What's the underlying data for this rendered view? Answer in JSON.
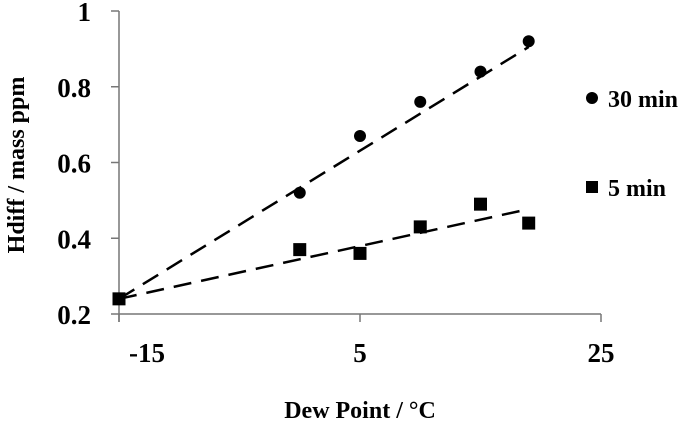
{
  "chart_data": {
    "type": "scatter",
    "title": "",
    "xlabel": "Dew Point / °C",
    "ylabel": "Hdiff / mass ppm",
    "xlim": [
      -15,
      25
    ],
    "ylim": [
      0.2,
      1.0
    ],
    "xticks": [
      -15,
      5,
      25
    ],
    "xtick_labels": [
      "-15",
      "5",
      "25"
    ],
    "yticks": [
      0.2,
      0.4,
      0.6,
      0.8,
      1.0
    ],
    "ytick_labels": [
      "0.2",
      "0.4",
      "0.6",
      "0.8",
      "1"
    ],
    "grid": false,
    "legend_position": "right",
    "series": [
      {
        "name": "30 min",
        "marker": "circle",
        "x": [
          -15,
          0,
          5,
          10,
          15,
          19
        ],
        "y": [
          0.24,
          0.52,
          0.67,
          0.76,
          0.84,
          0.92
        ],
        "trendline": {
          "style": "dashed",
          "x": [
            -15,
            19
          ],
          "y": [
            0.24,
            0.905
          ]
        }
      },
      {
        "name": "5 min",
        "marker": "square",
        "x": [
          -15,
          0,
          5,
          10,
          15,
          19
        ],
        "y": [
          0.24,
          0.37,
          0.36,
          0.43,
          0.49,
          0.44
        ],
        "trendline": {
          "style": "dashed",
          "x": [
            -15,
            19
          ],
          "y": [
            0.24,
            0.477
          ]
        }
      }
    ],
    "color": "#000000"
  }
}
